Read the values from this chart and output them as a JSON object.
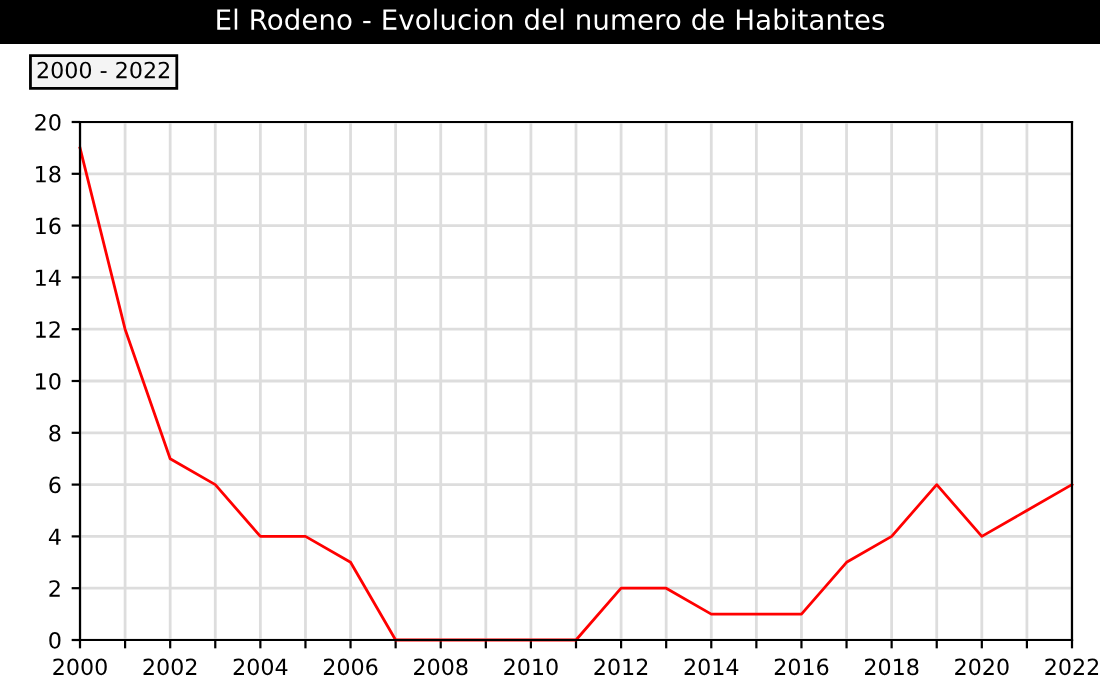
{
  "chart_data": {
    "type": "line",
    "title": "El Rodeno - Evolucion del numero de Habitantes",
    "annotations": [
      "2000 - 2022"
    ],
    "x": [
      2000,
      2001,
      2002,
      2003,
      2004,
      2005,
      2006,
      2007,
      2008,
      2009,
      2010,
      2011,
      2012,
      2013,
      2014,
      2015,
      2016,
      2017,
      2018,
      2019,
      2020,
      2021,
      2022
    ],
    "series": [
      {
        "color": "#ff0000",
        "values": [
          19,
          12,
          7,
          6,
          4,
          4,
          3,
          0,
          0,
          0,
          0,
          0,
          2,
          2,
          1,
          1,
          1,
          3,
          4,
          6,
          4,
          5,
          6
        ]
      }
    ],
    "xlim": [
      2000,
      2022
    ],
    "xticks": [
      2000,
      {
        "value": 2001,
        "label": null
      },
      2002,
      {
        "value": 2003,
        "label": null
      },
      2004,
      {
        "value": 2005,
        "label": null
      },
      2006,
      {
        "value": 2007,
        "label": null
      },
      2008,
      {
        "value": 2009,
        "label": null
      },
      2010,
      {
        "value": 2011,
        "label": null
      },
      2012,
      {
        "value": 2013,
        "label": null
      },
      2014,
      {
        "value": 2015,
        "label": null
      },
      2016,
      {
        "value": 2017,
        "label": null
      },
      2018,
      {
        "value": 2019,
        "label": null
      },
      2020,
      {
        "value": 2021,
        "label": null
      },
      2022
    ],
    "ylim": [
      0,
      20
    ],
    "yticks": [
      0,
      2,
      4,
      6,
      8,
      10,
      12,
      14,
      16,
      18,
      20
    ],
    "grid": true,
    "legend": false,
    "marker": "none",
    "line_style": "solid"
  }
}
